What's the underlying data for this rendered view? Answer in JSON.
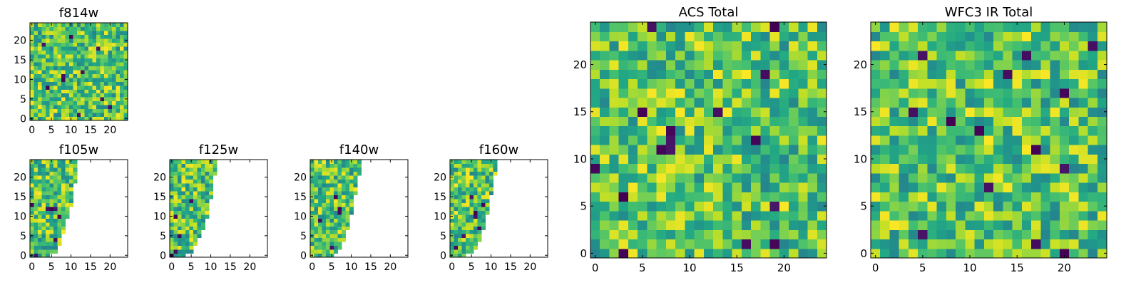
{
  "colormap": "viridis",
  "colors": {
    "low": "#440154",
    "mid": "#21918c",
    "high": "#fde725",
    "background": "#ffffff",
    "frame": "#000000"
  },
  "chart_data": [
    {
      "id": "f814w",
      "type": "heatmap",
      "title": "f814w",
      "grid": [
        25,
        25
      ],
      "xlim": [
        0,
        24
      ],
      "ylim": [
        0,
        24
      ],
      "xticks": [
        "0",
        "5",
        "10",
        "15",
        "20"
      ],
      "yticks": [
        "0",
        "5",
        "10",
        "15",
        "20"
      ],
      "coverage": "full",
      "low_cells": [
        [
          8,
          11
        ],
        [
          8,
          10
        ],
        [
          17,
          18
        ],
        [
          3,
          19
        ],
        [
          13,
          12
        ],
        [
          4,
          8
        ],
        [
          18,
          5
        ],
        [
          20,
          3
        ],
        [
          10,
          21
        ],
        [
          12,
          1
        ]
      ]
    },
    {
      "id": "f105w",
      "type": "heatmap",
      "title": "f105w",
      "grid": [
        25,
        25
      ],
      "xlim": [
        0,
        24
      ],
      "ylim": [
        0,
        24
      ],
      "xticks": [
        "0",
        "5",
        "10",
        "15",
        "20"
      ],
      "yticks": [
        "0",
        "5",
        "10",
        "15",
        "20"
      ],
      "coverage": "partial",
      "row_extent": [
        5,
        7,
        7,
        8,
        8,
        8,
        9,
        9,
        9,
        9,
        10,
        10,
        10,
        11,
        11,
        11,
        11,
        11,
        11,
        12,
        12,
        12,
        12,
        12,
        12
      ],
      "low_cells": [
        [
          5,
          12
        ],
        [
          6,
          12
        ],
        [
          4,
          12
        ],
        [
          1,
          0
        ],
        [
          7,
          10
        ],
        [
          0,
          13
        ],
        [
          6,
          4
        ]
      ]
    },
    {
      "id": "f125w",
      "type": "heatmap",
      "title": "f125w",
      "grid": [
        25,
        25
      ],
      "xlim": [
        0,
        24
      ],
      "ylim": [
        0,
        24
      ],
      "xticks": [
        "0",
        "5",
        "10",
        "15",
        "20"
      ],
      "yticks": [
        "0",
        "5",
        "10",
        "15",
        "20"
      ],
      "coverage": "partial",
      "row_extent": [
        4,
        6,
        6,
        7,
        7,
        8,
        8,
        9,
        9,
        9,
        10,
        10,
        10,
        10,
        10,
        11,
        11,
        11,
        11,
        11,
        11,
        12,
        12,
        12,
        12
      ],
      "low_cells": [
        [
          1,
          10
        ],
        [
          0,
          0
        ],
        [
          1,
          1
        ],
        [
          5,
          14
        ],
        [
          2,
          5
        ]
      ]
    },
    {
      "id": "f140w",
      "type": "heatmap",
      "title": "f140w",
      "grid": [
        25,
        25
      ],
      "xlim": [
        0,
        24
      ],
      "ylim": [
        0,
        24
      ],
      "xticks": [
        "0",
        "5",
        "10",
        "15",
        "20"
      ],
      "yticks": [
        "0",
        "5",
        "10",
        "15",
        "20"
      ],
      "coverage": "partial",
      "row_extent": [
        6,
        7,
        8,
        8,
        9,
        9,
        9,
        10,
        10,
        10,
        10,
        11,
        11,
        11,
        11,
        11,
        12,
        12,
        12,
        12,
        12,
        13,
        13,
        13,
        13
      ],
      "low_cells": [
        [
          7,
          12
        ],
        [
          7,
          11
        ],
        [
          8,
          1
        ],
        [
          2,
          9
        ],
        [
          6,
          15
        ],
        [
          5,
          2
        ]
      ]
    },
    {
      "id": "f160w",
      "type": "heatmap",
      "title": "f160w",
      "grid": [
        25,
        25
      ],
      "xlim": [
        0,
        24
      ],
      "ylim": [
        0,
        24
      ],
      "xticks": [
        "0",
        "5",
        "10",
        "15",
        "20"
      ],
      "yticks": [
        "0",
        "5",
        "10",
        "15",
        "20"
      ],
      "coverage": "partial",
      "row_extent": [
        4,
        6,
        7,
        7,
        8,
        8,
        8,
        9,
        9,
        9,
        9,
        10,
        10,
        10,
        10,
        10,
        11,
        11,
        11,
        11,
        11,
        12,
        12,
        12,
        12
      ],
      "low_cells": [
        [
          6,
          11
        ],
        [
          6,
          10
        ],
        [
          1,
          2
        ],
        [
          7,
          7
        ],
        [
          3,
          5
        ],
        [
          8,
          13
        ],
        [
          5,
          15
        ]
      ]
    },
    {
      "id": "acs-total",
      "type": "heatmap",
      "title": "ACS Total",
      "grid": [
        25,
        25
      ],
      "xlim": [
        0,
        24
      ],
      "ylim": [
        0,
        24
      ],
      "xticks": [
        "0",
        "5",
        "10",
        "15",
        "20"
      ],
      "yticks": [
        "0",
        "5",
        "10",
        "15",
        "20"
      ],
      "coverage": "full",
      "low_cells": [
        [
          8,
          13
        ],
        [
          8,
          12
        ],
        [
          8,
          11
        ],
        [
          7,
          11
        ],
        [
          17,
          12
        ],
        [
          5,
          15
        ],
        [
          13,
          15
        ],
        [
          19,
          24
        ],
        [
          0,
          9
        ],
        [
          16,
          1
        ],
        [
          19,
          1
        ],
        [
          3,
          0
        ],
        [
          3,
          6
        ],
        [
          18,
          19
        ],
        [
          6,
          24
        ],
        [
          19,
          5
        ]
      ]
    },
    {
      "id": "wfc3-ir-total",
      "type": "heatmap",
      "title": "WFC3 IR Total",
      "grid": [
        25,
        25
      ],
      "xlim": [
        0,
        24
      ],
      "ylim": [
        0,
        24
      ],
      "xticks": [
        "0",
        "5",
        "10",
        "15",
        "20"
      ],
      "yticks": [
        "0",
        "5",
        "10",
        "15",
        "20"
      ],
      "coverage": "full",
      "low_cells": [
        [
          5,
          21
        ],
        [
          16,
          21
        ],
        [
          14,
          19
        ],
        [
          20,
          17
        ],
        [
          11,
          13
        ],
        [
          17,
          11
        ],
        [
          20,
          9
        ],
        [
          5,
          2
        ],
        [
          17,
          1
        ],
        [
          20,
          0
        ],
        [
          23,
          22
        ],
        [
          4,
          15
        ],
        [
          12,
          7
        ],
        [
          8,
          14
        ]
      ]
    }
  ]
}
